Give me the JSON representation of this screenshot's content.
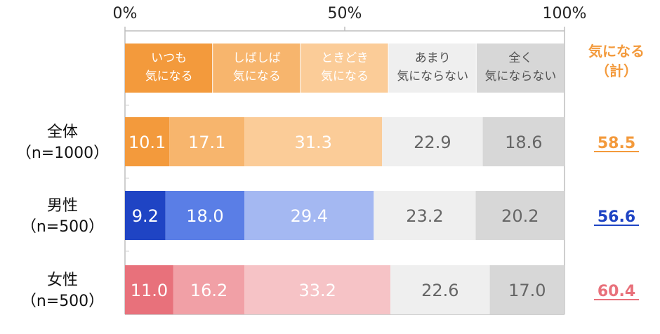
{
  "chart_data": {
    "type": "bar",
    "orientation": "horizontal",
    "stacked": true,
    "xlim": [
      0,
      100
    ],
    "x_ticks": [
      "0%",
      "50%",
      "100%"
    ],
    "categories": [
      [
        "全体",
        "（n=1000）"
      ],
      [
        "男性",
        "（n=500）"
      ],
      [
        "女性",
        "（n=500）"
      ]
    ],
    "series_headers": [
      [
        "いつも",
        "気になる"
      ],
      [
        "しばしば",
        "気になる"
      ],
      [
        "ときどき",
        "気になる"
      ],
      [
        "あまり",
        "気にならない"
      ],
      [
        "全く",
        "気にならない"
      ]
    ],
    "header_colors": [
      "#f39a3c",
      "#f7b56d",
      "#fbcc98",
      "#efefef",
      "#d7d7d7"
    ],
    "header_text_colors": [
      "#ffffff",
      "#ffffff",
      "#ffffff",
      "#555555",
      "#555555"
    ],
    "values": [
      [
        10.1,
        17.1,
        31.3,
        22.9,
        18.6
      ],
      [
        9.2,
        18.0,
        29.4,
        23.2,
        20.2
      ],
      [
        11.0,
        16.2,
        33.2,
        22.6,
        17.0
      ]
    ],
    "value_labels": [
      [
        "10.1",
        "17.1",
        "31.3",
        "22.9",
        "18.6"
      ],
      [
        "9.2",
        "18.0",
        "29.4",
        "23.2",
        "20.2"
      ],
      [
        "11.0",
        "16.2",
        "33.2",
        "22.6",
        "17.0"
      ]
    ],
    "row_colors": [
      [
        "#f39a3c",
        "#f7b56d",
        "#fbcc98",
        "#efefef",
        "#d7d7d7"
      ],
      [
        "#1f44c4",
        "#5a7ee6",
        "#a4b8f2",
        "#efefef",
        "#d7d7d7"
      ],
      [
        "#e8717b",
        "#f1a0a6",
        "#f6c3c6",
        "#efefef",
        "#d7d7d7"
      ]
    ],
    "row_text_colors": [
      [
        "#ffffff",
        "#ffffff",
        "#ffffff",
        "#666666",
        "#666666"
      ],
      [
        "#ffffff",
        "#ffffff",
        "#ffffff",
        "#666666",
        "#666666"
      ],
      [
        "#ffffff",
        "#ffffff",
        "#ffffff",
        "#666666",
        "#666666"
      ]
    ],
    "total_header": [
      "気になる",
      "（計）"
    ],
    "total_header_color": "#f39a3c",
    "totals": [
      "58.5",
      "56.6",
      "60.4"
    ],
    "total_colors": [
      "#f39a3c",
      "#1f44c4",
      "#e8717b"
    ]
  }
}
